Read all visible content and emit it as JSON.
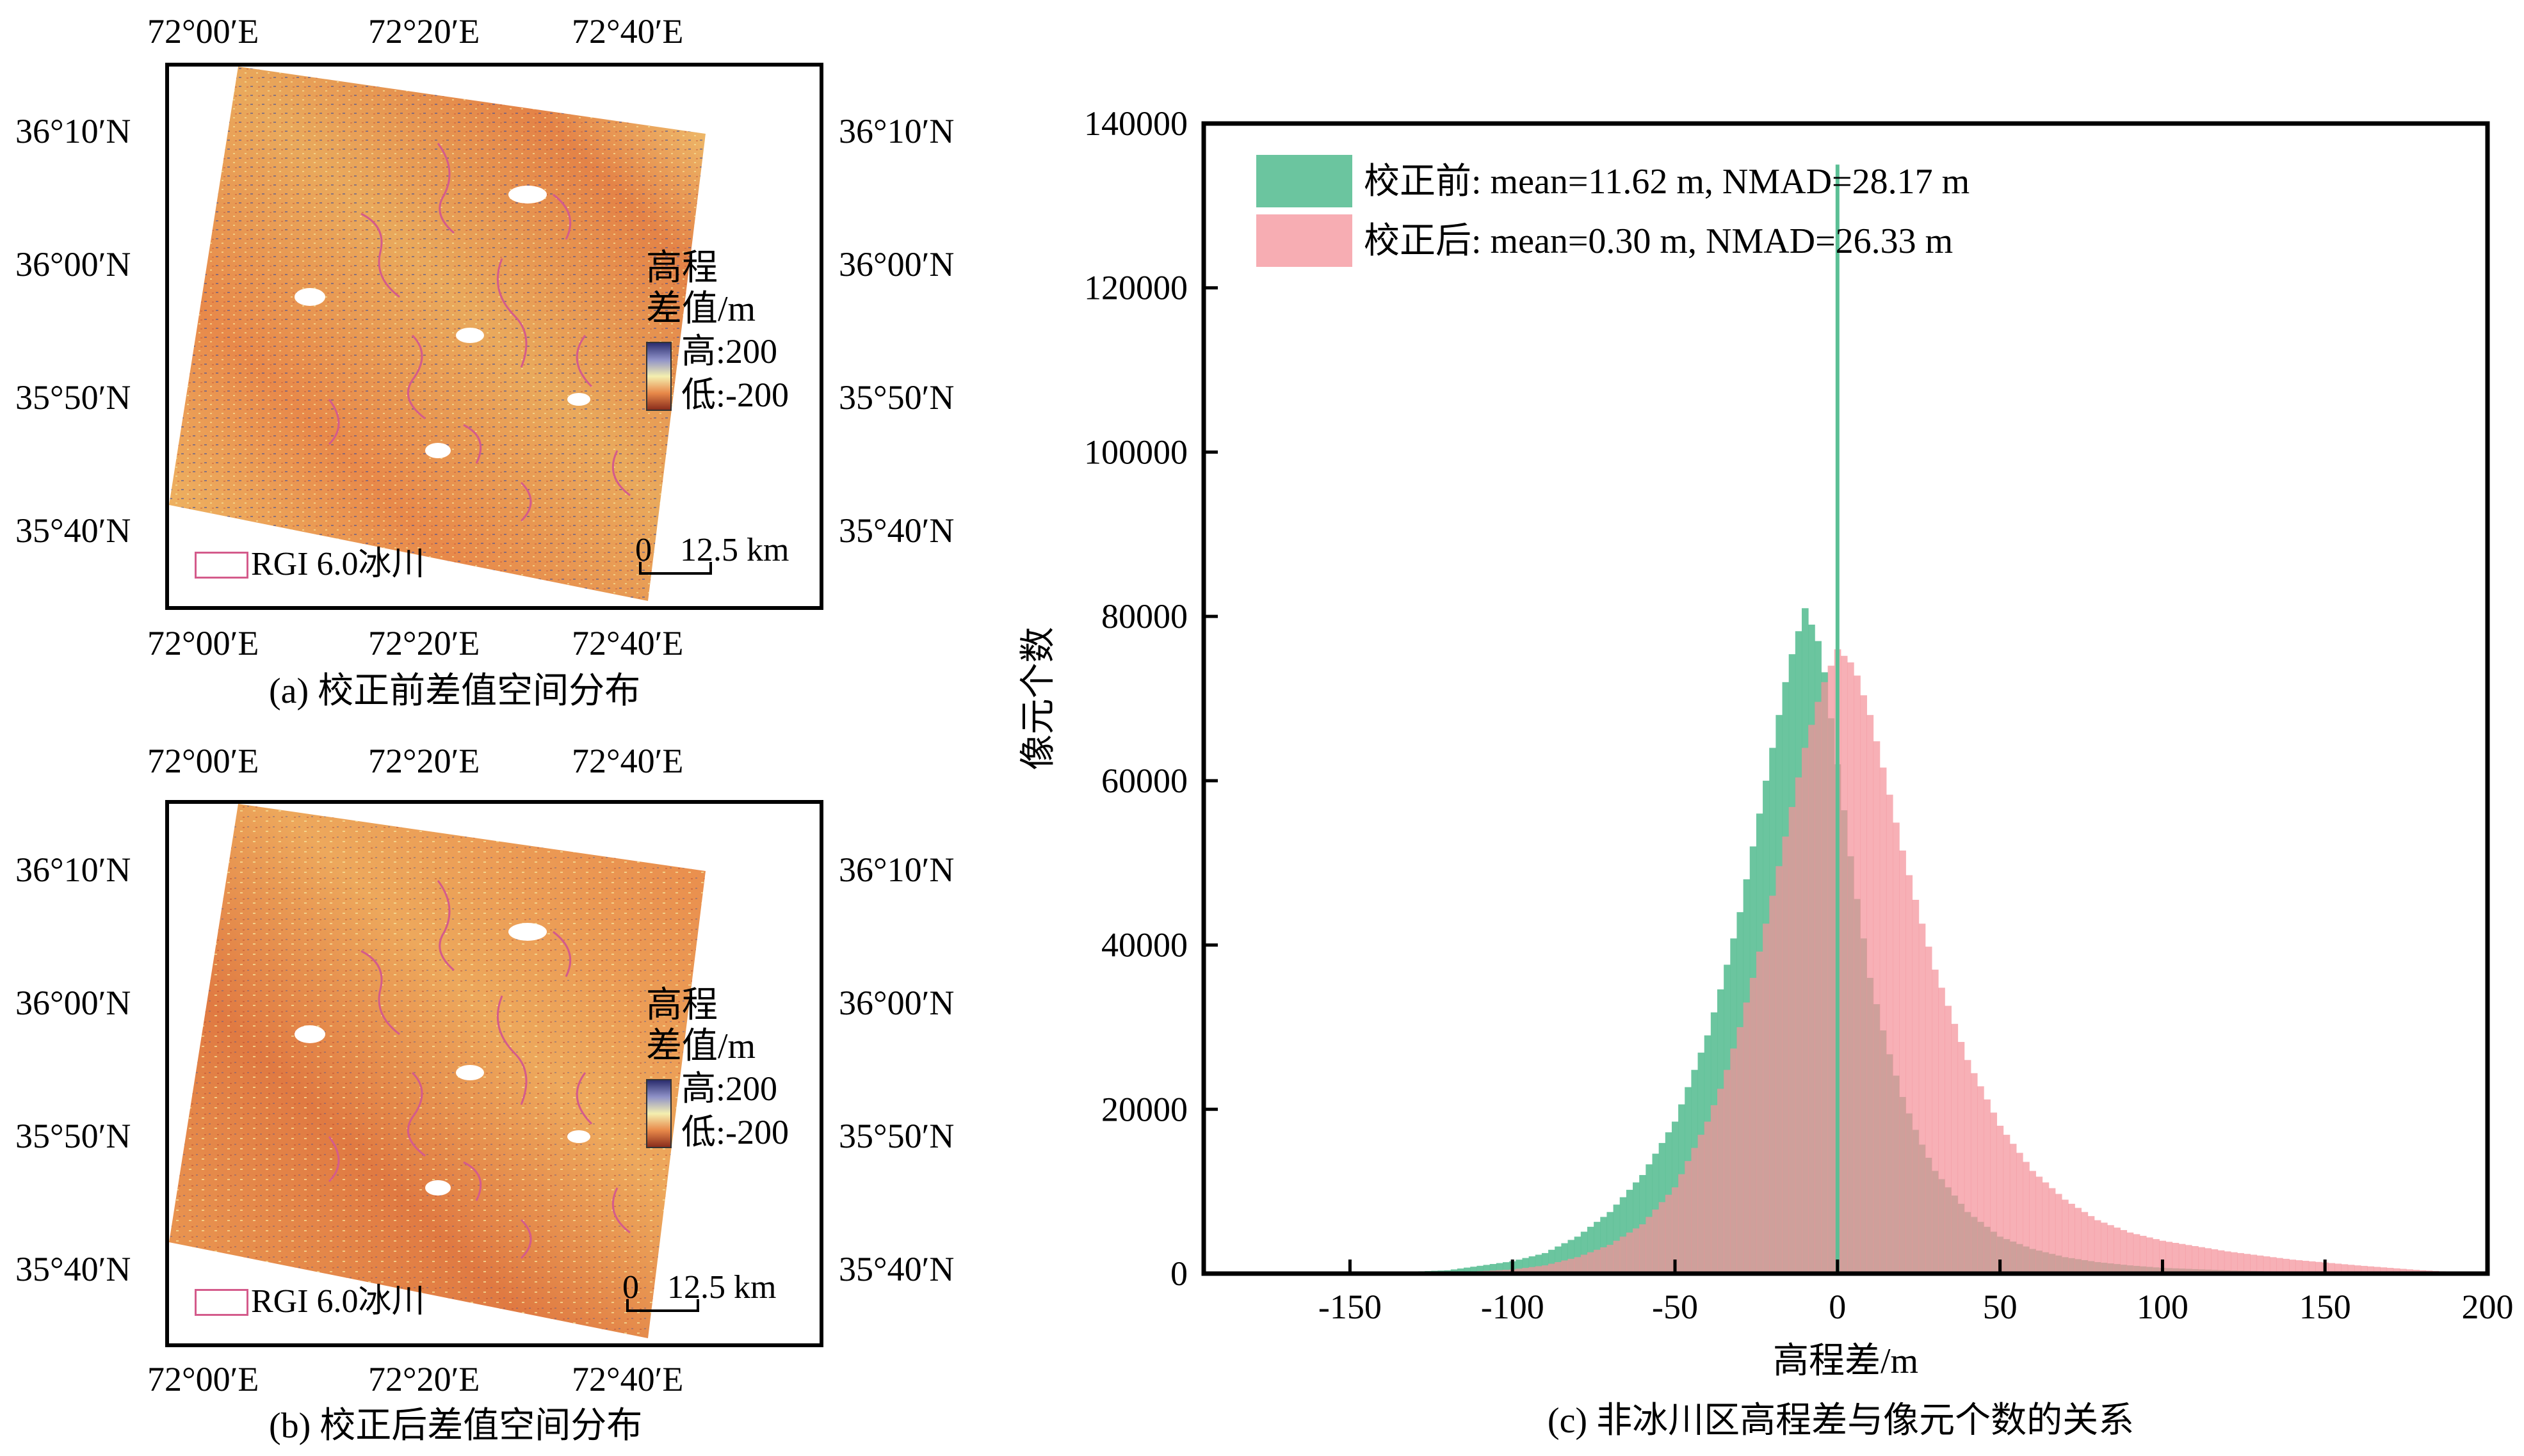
{
  "panels": [
    {
      "id": "a",
      "caption": "(a) 校正前差值空间分布",
      "lon_labels": [
        "72°00′E",
        "72°20′E",
        "72°40′E"
      ],
      "lat_labels": [
        "36°10′N",
        "36°00′N",
        "35°50′N",
        "35°40′N"
      ],
      "colorbar_title_1": "高程",
      "colorbar_title_2": "差值/m",
      "colorbar_high": "高:200",
      "colorbar_low": "低:-200",
      "scale_0": "0",
      "scale_end": "12.5 km",
      "legend_label": "RGI 6.0冰川"
    },
    {
      "id": "b",
      "caption": "(b) 校正后差值空间分布",
      "lon_labels": [
        "72°00′E",
        "72°20′E",
        "72°40′E"
      ],
      "lat_labels": [
        "36°10′N",
        "36°00′N",
        "35°50′N",
        "35°40′N"
      ],
      "colorbar_title_1": "高程",
      "colorbar_title_2": "差值/m",
      "colorbar_high": "高:200",
      "colorbar_low": "低:-200",
      "scale_0": "0",
      "scale_end": "12.5 km",
      "legend_label": "RGI 6.0冰川"
    }
  ],
  "colors": {
    "before": "#5bbf95",
    "after": "#f4919a",
    "glacier_outline": "#d45b8b",
    "map_warm": "#e8894a",
    "map_yellow": "#f3d77a",
    "map_blue": "#3a4c9c"
  },
  "chart_data": {
    "type": "bar",
    "title": "(c) 非冰川区高程差与像元个数的关系",
    "xlabel": "高程差/m",
    "ylabel": "像元个数",
    "xlim": [
      -195,
      200
    ],
    "ylim": [
      0,
      140000
    ],
    "xticks": [
      -150,
      -100,
      -50,
      0,
      50,
      100,
      150,
      200
    ],
    "yticks": [
      0,
      20000,
      40000,
      60000,
      80000,
      100000,
      120000,
      140000
    ],
    "legend_position": "top-left",
    "grid": false,
    "x": [
      -180,
      -160,
      -140,
      -120,
      -100,
      -90,
      -80,
      -70,
      -60,
      -50,
      -40,
      -35,
      -30,
      -25,
      -20,
      -15,
      -10,
      -5,
      0,
      5,
      10,
      15,
      20,
      25,
      30,
      40,
      50,
      60,
      70,
      80,
      90,
      100,
      120,
      140,
      160,
      180,
      200
    ],
    "series": [
      {
        "name": "校正前: mean=11.62 m, NMAD=28.17 m",
        "values": [
          0,
          0,
          100,
          400,
          1500,
          2500,
          4500,
          7500,
          12000,
          18500,
          29000,
          36000,
          44000,
          54000,
          64000,
          74000,
          81000,
          76000,
          62000,
          48000,
          36000,
          28000,
          21500,
          16500,
          12500,
          7500,
          4500,
          3000,
          2000,
          1400,
          1000,
          700,
          400,
          200,
          100,
          50,
          0
        ],
        "spike": {
          "x": 0,
          "value": 135000
        }
      },
      {
        "name": "校正后: mean=0.30 m, NMAD=26.33 m",
        "values": [
          0,
          0,
          0,
          100,
          500,
          1000,
          2000,
          3500,
          6000,
          10500,
          18500,
          23500,
          30000,
          37500,
          46000,
          55000,
          64000,
          71000,
          76000,
          74000,
          68000,
          60000,
          51500,
          44000,
          37000,
          26000,
          18000,
          12500,
          9000,
          6500,
          5000,
          4000,
          2700,
          1700,
          1000,
          400,
          0
        ]
      }
    ]
  }
}
